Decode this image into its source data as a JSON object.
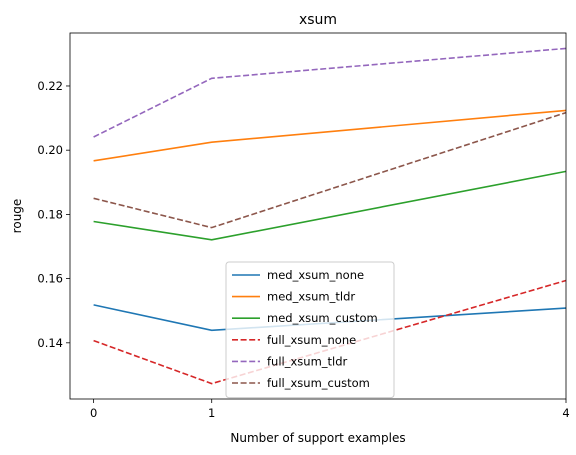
{
  "chart_data": {
    "type": "line",
    "title": "xsum",
    "xlabel": "Number of support examples",
    "ylabel": "rouge",
    "x": [
      0,
      1,
      4
    ],
    "xticks": [
      "0",
      "1",
      "4"
    ],
    "xlim": [
      -0.2,
      4.0
    ],
    "ylim": [
      0.1225,
      0.2365
    ],
    "yticks": [
      "0.14",
      "0.16",
      "0.18",
      "0.20",
      "0.22"
    ],
    "ytick_values": [
      0.14,
      0.16,
      0.18,
      0.2,
      0.22
    ],
    "grid": false,
    "legend_position": "lower center",
    "series": [
      {
        "name": "med_xsum_none",
        "values": [
          0.1518,
          0.1439,
          0.1508
        ],
        "color": "#1f77b4",
        "style": "solid"
      },
      {
        "name": "med_xsum_tldr",
        "values": [
          0.1967,
          0.2025,
          0.2124
        ],
        "color": "#ff7f0e",
        "style": "solid"
      },
      {
        "name": "med_xsum_custom",
        "values": [
          0.1778,
          0.1721,
          0.1934
        ],
        "color": "#2ca02c",
        "style": "solid"
      },
      {
        "name": "full_xsum_none",
        "values": [
          0.1407,
          0.1273,
          0.1594
        ],
        "color": "#d62728",
        "style": "dashed"
      },
      {
        "name": "full_xsum_tldr",
        "values": [
          0.2041,
          0.2224,
          0.2317
        ],
        "color": "#9467bd",
        "style": "dashed"
      },
      {
        "name": "full_xsum_custom",
        "values": [
          0.185,
          0.1759,
          0.2117
        ],
        "color": "#8c564b",
        "style": "dashed"
      }
    ]
  }
}
